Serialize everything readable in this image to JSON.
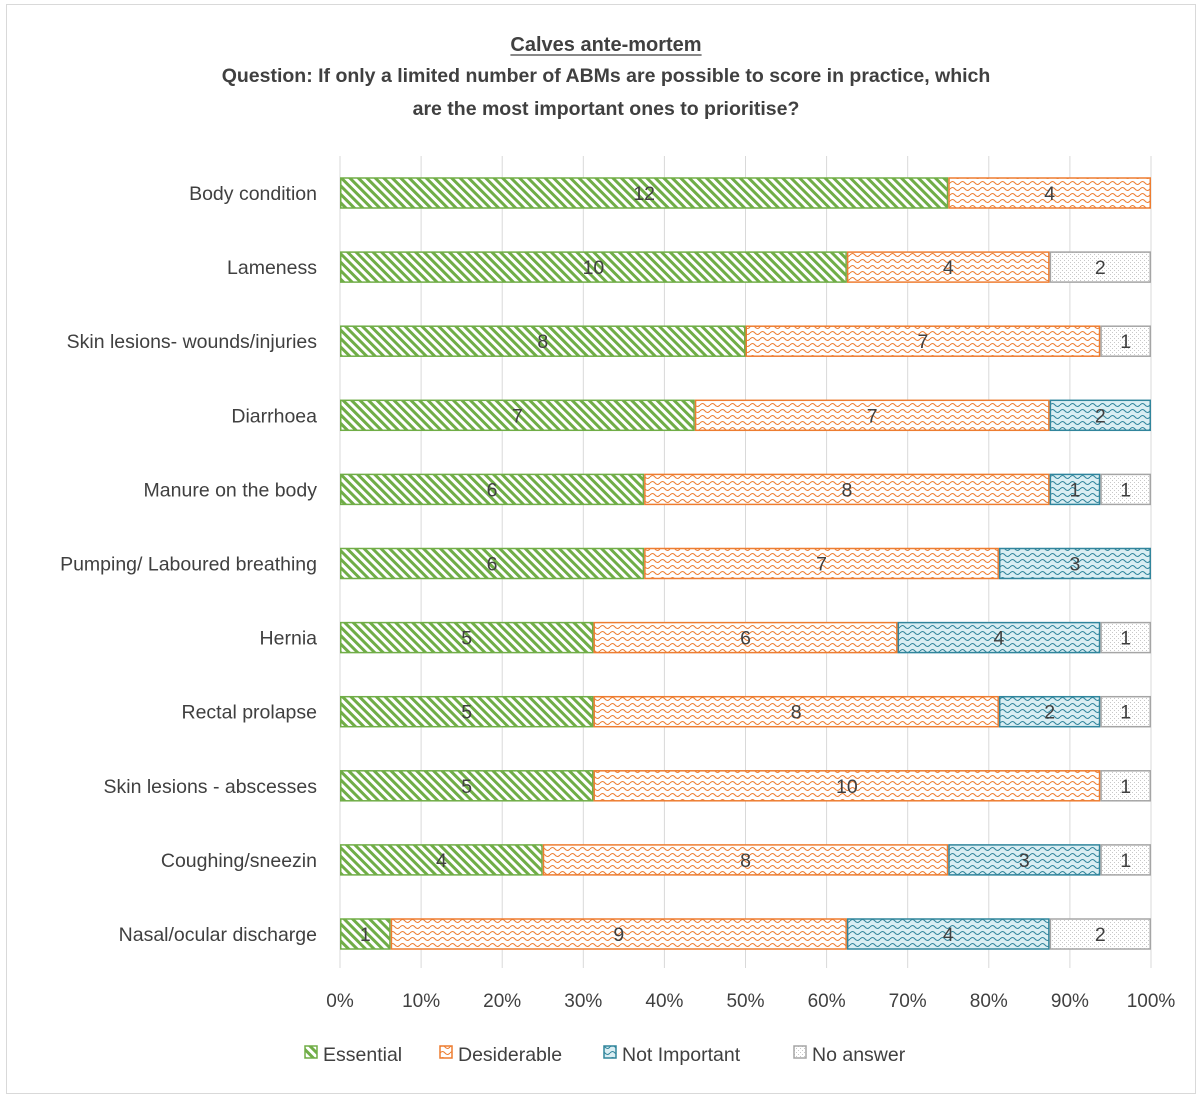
{
  "chart_data": {
    "type": "bar",
    "orientation": "horizontal",
    "stacked": "percent",
    "title": "Calves ante-mortem",
    "subtitle": "Question: If only a limited number of ABMs are possible to score in practice, which are the most important ones to prioritise?",
    "categories": [
      "Body condition",
      "Lameness",
      "Skin lesions- wounds/injuries",
      "Diarrhoea",
      "Manure on the body",
      "Pumping/ Laboured breathing",
      "Hernia",
      "Rectal prolapse",
      "Skin lesions - abscesses",
      "Coughing/sneezin",
      "Nasal/ocular discharge"
    ],
    "series": [
      {
        "name": "Essential",
        "values": [
          12,
          10,
          8,
          7,
          6,
          6,
          5,
          5,
          5,
          4,
          1
        ],
        "color": "#70ad47"
      },
      {
        "name": "Desiderable",
        "values": [
          4,
          4,
          7,
          7,
          8,
          7,
          6,
          8,
          10,
          8,
          9
        ],
        "color": "#ed7d31"
      },
      {
        "name": "Not Important",
        "values": [
          0,
          0,
          0,
          2,
          1,
          3,
          4,
          2,
          0,
          3,
          4
        ],
        "color": "#31859c"
      },
      {
        "name": "No answer",
        "values": [
          0,
          2,
          1,
          0,
          1,
          0,
          1,
          1,
          1,
          1,
          2
        ],
        "color": "#a5a5a5"
      }
    ],
    "xlim": [
      0,
      100
    ],
    "xticks": [
      "0%",
      "10%",
      "20%",
      "30%",
      "40%",
      "50%",
      "60%",
      "70%",
      "80%",
      "90%",
      "100%"
    ],
    "grid": true,
    "legend_position": "bottom"
  }
}
